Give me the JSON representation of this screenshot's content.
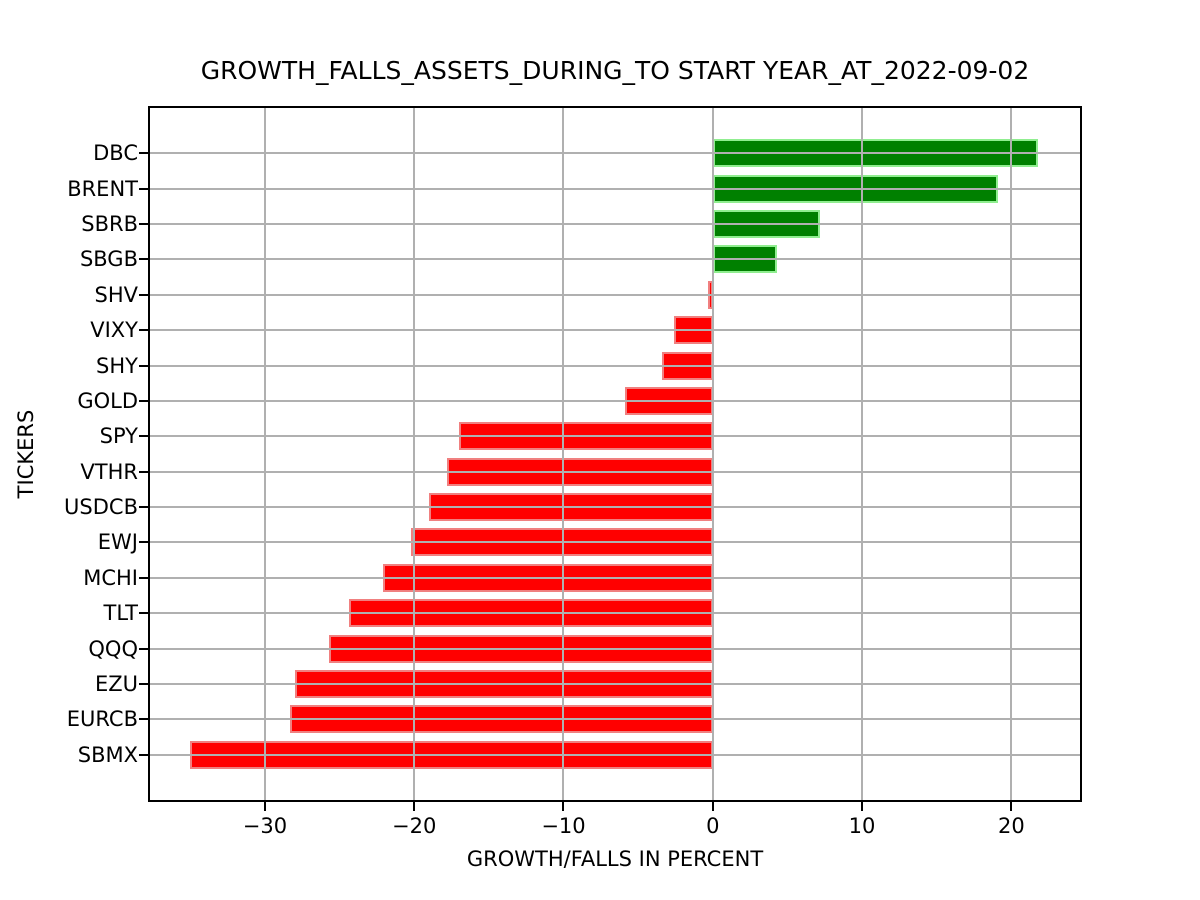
{
  "chart_data": {
    "type": "bar",
    "orientation": "horizontal",
    "title": "GROWTH_FALLS_ASSETS_DURING_TO START YEAR_AT_2022-09-02",
    "xlabel": "GROWTH/FALLS IN PERCENT",
    "ylabel": "TICKERS",
    "categories": [
      "DBC",
      "BRENT",
      "SBRB",
      "SBGB",
      "SHV",
      "VIXY",
      "SHY",
      "GOLD",
      "SPY",
      "VTHR",
      "USDCB",
      "EWJ",
      "MCHI",
      "TLT",
      "QQQ",
      "EZU",
      "EURCB",
      "SBMX"
    ],
    "values": [
      21.8,
      19.1,
      7.2,
      4.3,
      -0.3,
      -2.6,
      -3.4,
      -5.9,
      -17.0,
      -17.8,
      -19.0,
      -20.2,
      -22.1,
      -24.4,
      -25.7,
      -28.0,
      -28.3,
      -35.0
    ],
    "xlim": [
      -37.7,
      24.6
    ],
    "xticks": [
      -30,
      -20,
      -10,
      0,
      10,
      20
    ],
    "xtick_labels": [
      "−30",
      "−20",
      "−10",
      "0",
      "10",
      "20"
    ],
    "grid": true,
    "legend": null,
    "colors": {
      "positive": "#008000",
      "positive_edge": "#90ee90",
      "negative": "#ff0000",
      "negative_edge": "#f08080",
      "grid": "#b0b0b0",
      "spine": "#000000",
      "background": "#ffffff",
      "text": "#000000"
    }
  }
}
